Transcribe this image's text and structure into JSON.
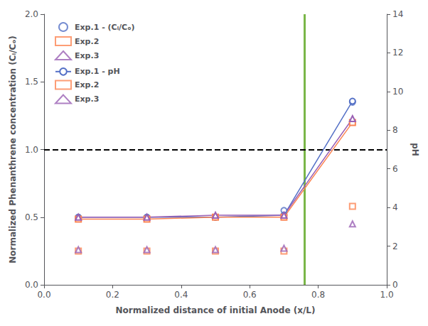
{
  "chart_data": {
    "type": "line",
    "xlabel": "Normalized distance of initial Anode (x/L)",
    "ylabel": "Normalized Phenanthrene concentration (Cᵢ/Cₒ)",
    "y2label": "pH",
    "x": [
      0.1,
      0.3,
      0.5,
      0.7,
      0.9
    ],
    "series": [
      {
        "name": "Exp.1 - (Cᵢ/Cₒ)",
        "type": "scatter",
        "marker": "circle",
        "color": "#5470c6",
        "values": [
          0.49,
          0.49,
          0.5,
          0.55,
          1.35
        ]
      },
      {
        "name": "Exp.2",
        "type": "scatter",
        "marker": "square",
        "color": "#fc8452",
        "values": [
          0.25,
          0.25,
          0.25,
          0.25,
          0.58
        ]
      },
      {
        "name": "Exp.3",
        "type": "scatter",
        "marker": "triangle",
        "color": "#9a60b4",
        "values": [
          0.26,
          0.26,
          0.26,
          0.27,
          0.45
        ]
      },
      {
        "name": "Exp.1 - pH",
        "type": "line",
        "axis": "y2",
        "marker": "circle",
        "line_style": "solid",
        "color": "#5470c6",
        "values": [
          3.5,
          3.5,
          3.5,
          3.6,
          9.5
        ]
      },
      {
        "name": "Exp.2",
        "type": "line",
        "axis": "y2",
        "marker": "square",
        "line_style": "solid",
        "color": "#fc8452",
        "values": [
          3.4,
          3.4,
          3.5,
          3.5,
          8.4
        ]
      },
      {
        "name": "Exp.3",
        "type": "line",
        "axis": "y2",
        "marker": "triangle",
        "line_style": "solid",
        "color": "#9a60b4",
        "values": [
          3.5,
          3.5,
          3.6,
          3.6,
          8.6
        ]
      }
    ],
    "reference_lines": [
      {
        "x": 0.76,
        "color": "#7ab648",
        "line_style": "solid"
      },
      {
        "y": 1.0,
        "color": "black",
        "line_style": "dashed"
      }
    ],
    "xlim": [
      0.0,
      1.0
    ],
    "xticks": [
      {
        "value": 0.0,
        "label": "0.0"
      },
      0.2,
      0.4,
      0.6,
      0.8,
      {
        "value": 1.0,
        "label": "1.0"
      }
    ],
    "ylim": [
      0.0,
      2.0
    ],
    "yticks": [
      {
        "value": 0.0,
        "label": "0.0"
      },
      0.5,
      {
        "value": 1.0,
        "label": "1.0"
      },
      1.5,
      {
        "value": 2.0,
        "label": "2.0"
      }
    ],
    "y2lim": [
      0,
      14
    ],
    "y2ticks": [
      0,
      2,
      4,
      6,
      8,
      10,
      12,
      14
    ],
    "grid": false,
    "legend": "upper left"
  }
}
